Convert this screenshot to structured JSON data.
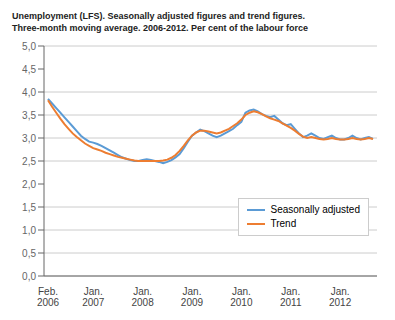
{
  "chart_data": {
    "type": "line",
    "title": "Unemployment (LFS). Seasonally adjusted figures and trend figures.\nThree-month moving average. 2006-2012. Per cent of the labour force",
    "categories": [
      "Feb.\n2006",
      null,
      null,
      null,
      null,
      null,
      null,
      null,
      null,
      null,
      null,
      "Jan.\n2007",
      null,
      null,
      null,
      null,
      null,
      null,
      null,
      null,
      null,
      null,
      null,
      "Jan.\n2008",
      null,
      null,
      null,
      null,
      null,
      null,
      null,
      null,
      null,
      null,
      null,
      "Jan.\n2009",
      null,
      null,
      null,
      null,
      null,
      null,
      null,
      null,
      null,
      null,
      null,
      "Jan.\n2010",
      null,
      null,
      null,
      null,
      null,
      null,
      null,
      null,
      null,
      null,
      null,
      "Jan.\n2011",
      null,
      null,
      null,
      null,
      null,
      null,
      null,
      null,
      null,
      null,
      null,
      "Jan.\n2012",
      null,
      null,
      null,
      null,
      null,
      null,
      null,
      null
    ],
    "series": [
      {
        "name": "Seasonally adjusted",
        "color": "#5b9bd5",
        "values": [
          3.85,
          3.75,
          3.65,
          3.55,
          3.45,
          3.35,
          3.25,
          3.15,
          3.05,
          2.98,
          2.92,
          2.9,
          2.87,
          2.83,
          2.78,
          2.73,
          2.68,
          2.63,
          2.58,
          2.55,
          2.52,
          2.5,
          2.5,
          2.52,
          2.54,
          2.52,
          2.5,
          2.48,
          2.45,
          2.48,
          2.52,
          2.58,
          2.65,
          2.78,
          2.92,
          3.05,
          3.12,
          3.18,
          3.15,
          3.1,
          3.05,
          3.02,
          3.05,
          3.1,
          3.15,
          3.2,
          3.28,
          3.35,
          3.55,
          3.6,
          3.62,
          3.58,
          3.52,
          3.48,
          3.45,
          3.48,
          3.4,
          3.32,
          3.28,
          3.3,
          3.2,
          3.1,
          3.02,
          3.05,
          3.1,
          3.05,
          3.0,
          2.98,
          3.02,
          3.05,
          3.0,
          2.97,
          2.97,
          3.0,
          3.05,
          3.0,
          2.97,
          3.0,
          3.02,
          2.98
        ]
      },
      {
        "name": "Trend",
        "color": "#ed7d31",
        "values": [
          3.82,
          3.68,
          3.55,
          3.42,
          3.3,
          3.2,
          3.1,
          3.02,
          2.95,
          2.88,
          2.83,
          2.78,
          2.75,
          2.72,
          2.68,
          2.65,
          2.62,
          2.59,
          2.57,
          2.55,
          2.53,
          2.51,
          2.5,
          2.5,
          2.5,
          2.5,
          2.5,
          2.5,
          2.51,
          2.53,
          2.57,
          2.63,
          2.72,
          2.83,
          2.95,
          3.05,
          3.12,
          3.16,
          3.16,
          3.14,
          3.12,
          3.1,
          3.12,
          3.16,
          3.2,
          3.26,
          3.32,
          3.4,
          3.5,
          3.55,
          3.58,
          3.56,
          3.52,
          3.47,
          3.43,
          3.4,
          3.37,
          3.32,
          3.27,
          3.22,
          3.16,
          3.09,
          3.03,
          3.0,
          3.02,
          3.0,
          2.98,
          2.97,
          2.98,
          3.0,
          2.98,
          2.97,
          2.97,
          2.98,
          3.0,
          2.98,
          2.97,
          2.98,
          3.0,
          2.98
        ]
      }
    ],
    "ylim": [
      0.0,
      5.0
    ],
    "yticks": [
      {
        "value": 0.0,
        "label": "0,0"
      },
      {
        "value": 0.5,
        "label": "0,5"
      },
      {
        "value": 1.0,
        "label": "1,0"
      },
      {
        "value": 1.5,
        "label": "1,5"
      },
      {
        "value": 2.0,
        "label": "2,0"
      },
      {
        "value": 2.5,
        "label": "2,5"
      },
      {
        "value": 3.0,
        "label": "3,0"
      },
      {
        "value": 3.5,
        "label": "3,5"
      },
      {
        "value": 4.0,
        "label": "4,0"
      },
      {
        "value": 4.5,
        "label": "4,5"
      },
      {
        "value": 5.0,
        "label": "5,0"
      }
    ],
    "grid": true,
    "legend": "lower right"
  }
}
